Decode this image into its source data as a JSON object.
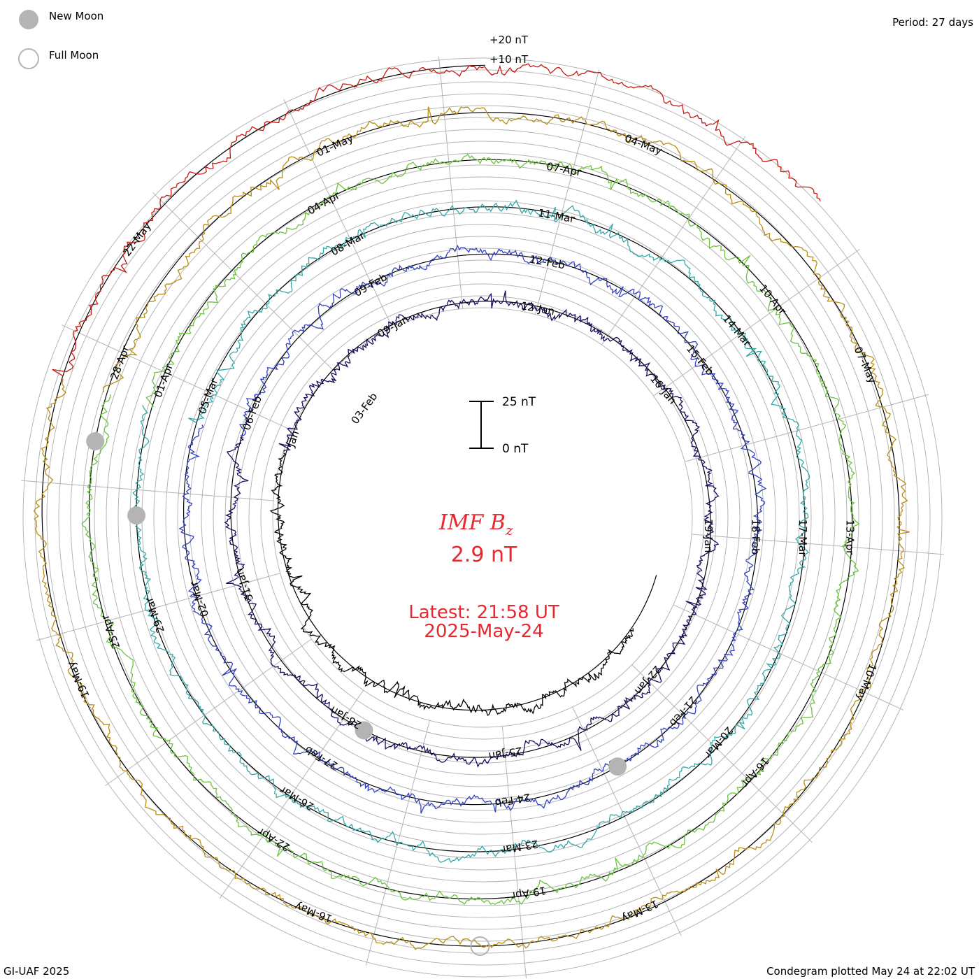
{
  "header": {
    "period": "Period: 27 days"
  },
  "legend": {
    "new_moon": "New Moon",
    "full_moon": "Full Moon"
  },
  "scale": {
    "plus20": "+20 nT",
    "plus10": "+10 nT",
    "bar_top": "25 nT",
    "bar_bottom": "0 nT"
  },
  "center": {
    "title_main": "IMF B",
    "title_sub": "z",
    "value": "2.9 nT",
    "latest_label": "Latest: 21:58 UT",
    "latest_date": "2025-May-24"
  },
  "footer": {
    "credit": "GI-UAF 2025",
    "plotted": "Condegram plotted May 24 at 22:02 UT"
  },
  "colors": {
    "accent": "#e8272f",
    "grid": "#b4b4b4",
    "moon_fill": "#b4b4b4"
  },
  "chart_data": {
    "type": "condegram",
    "title": "IMF Bz",
    "units": "nT",
    "period_days": 27,
    "latest_value": 2.9,
    "ylim": [
      -25,
      25
    ],
    "revolutions": [
      {
        "start_label": "03-Feb",
        "color": "#000000",
        "dates": [
          "03-Feb"
        ]
      },
      {
        "start_label": "Jan",
        "color": "#1e0a5c",
        "dates": [
          "Jan",
          "09-Jan",
          "12-Jan",
          "16-Jan",
          "19-Jan",
          "22-Jan",
          "25-Jan",
          "28-Jan",
          "31-Jan"
        ]
      },
      {
        "start_label": "06-Feb",
        "color": "#3241c0",
        "dates": [
          "06-Feb",
          "09-Feb",
          "12-Feb",
          "15-Feb",
          "18-Feb",
          "21-Feb",
          "24-Feb",
          "27-Feb",
          "02-Mar"
        ]
      },
      {
        "start_label": "05-Mar",
        "color": "#34a9a8",
        "dates": [
          "05-Mar",
          "08-Mar",
          "11-Mar",
          "14-Mar",
          "17-Mar",
          "20-Mar",
          "23-Mar",
          "26-Mar",
          "29-Mar"
        ]
      },
      {
        "start_label": "01-Apr",
        "color": "#6cc33c",
        "dates": [
          "01-Apr",
          "04-Apr",
          "07-Apr",
          "10-Apr",
          "13-Apr",
          "16-Apr",
          "19-Apr",
          "22-Apr",
          "25-Apr"
        ]
      },
      {
        "start_label": "28-Apr",
        "color": "#b78d12",
        "dates": [
          "28-Apr",
          "01-May",
          "04-May",
          "07-May",
          "10-May",
          "13-May",
          "16-May",
          "19-May"
        ]
      },
      {
        "start_label": "22-May",
        "color": "#c41a12",
        "dates": [
          "22-May"
        ]
      }
    ],
    "moon_phases": [
      {
        "phase": "new",
        "date_label": "29-Mar"
      },
      {
        "phase": "new",
        "date_label": "28-Apr"
      },
      {
        "phase": "new",
        "date_label": "27-Feb"
      },
      {
        "phase": "new",
        "date_label": "29-Jan"
      },
      {
        "phase": "full",
        "date_label": "13-May"
      }
    ]
  }
}
